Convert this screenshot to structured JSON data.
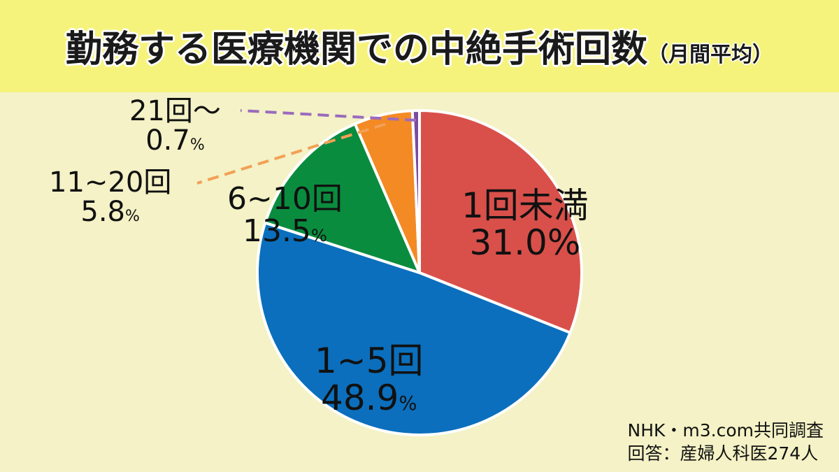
{
  "title": {
    "main": "勤務する医療機関での中絶手術回数",
    "sub": "（月間平均）"
  },
  "chart_data": {
    "type": "pie",
    "categories": [
      "1回未満",
      "1~5回",
      "6~10回",
      "11~20回",
      "21回～"
    ],
    "values": [
      31.0,
      48.9,
      13.5,
      5.8,
      0.7
    ],
    "value_labels": [
      "31.0",
      "48.9",
      "13.5",
      "5.8",
      "0.7"
    ],
    "unit": "%",
    "colors": [
      "#d9504a",
      "#0b6fbd",
      "#0a8c3e",
      "#f38a24",
      "#7b4aa0"
    ],
    "start": "12 o'clock, clockwise",
    "leader_colors": {
      "11~20回": "#f3a055",
      "21回～": "#9b6bbd"
    }
  },
  "source": {
    "line1": "NHK・m3.com共同調査",
    "line2": "回答：産婦人科医274人"
  }
}
